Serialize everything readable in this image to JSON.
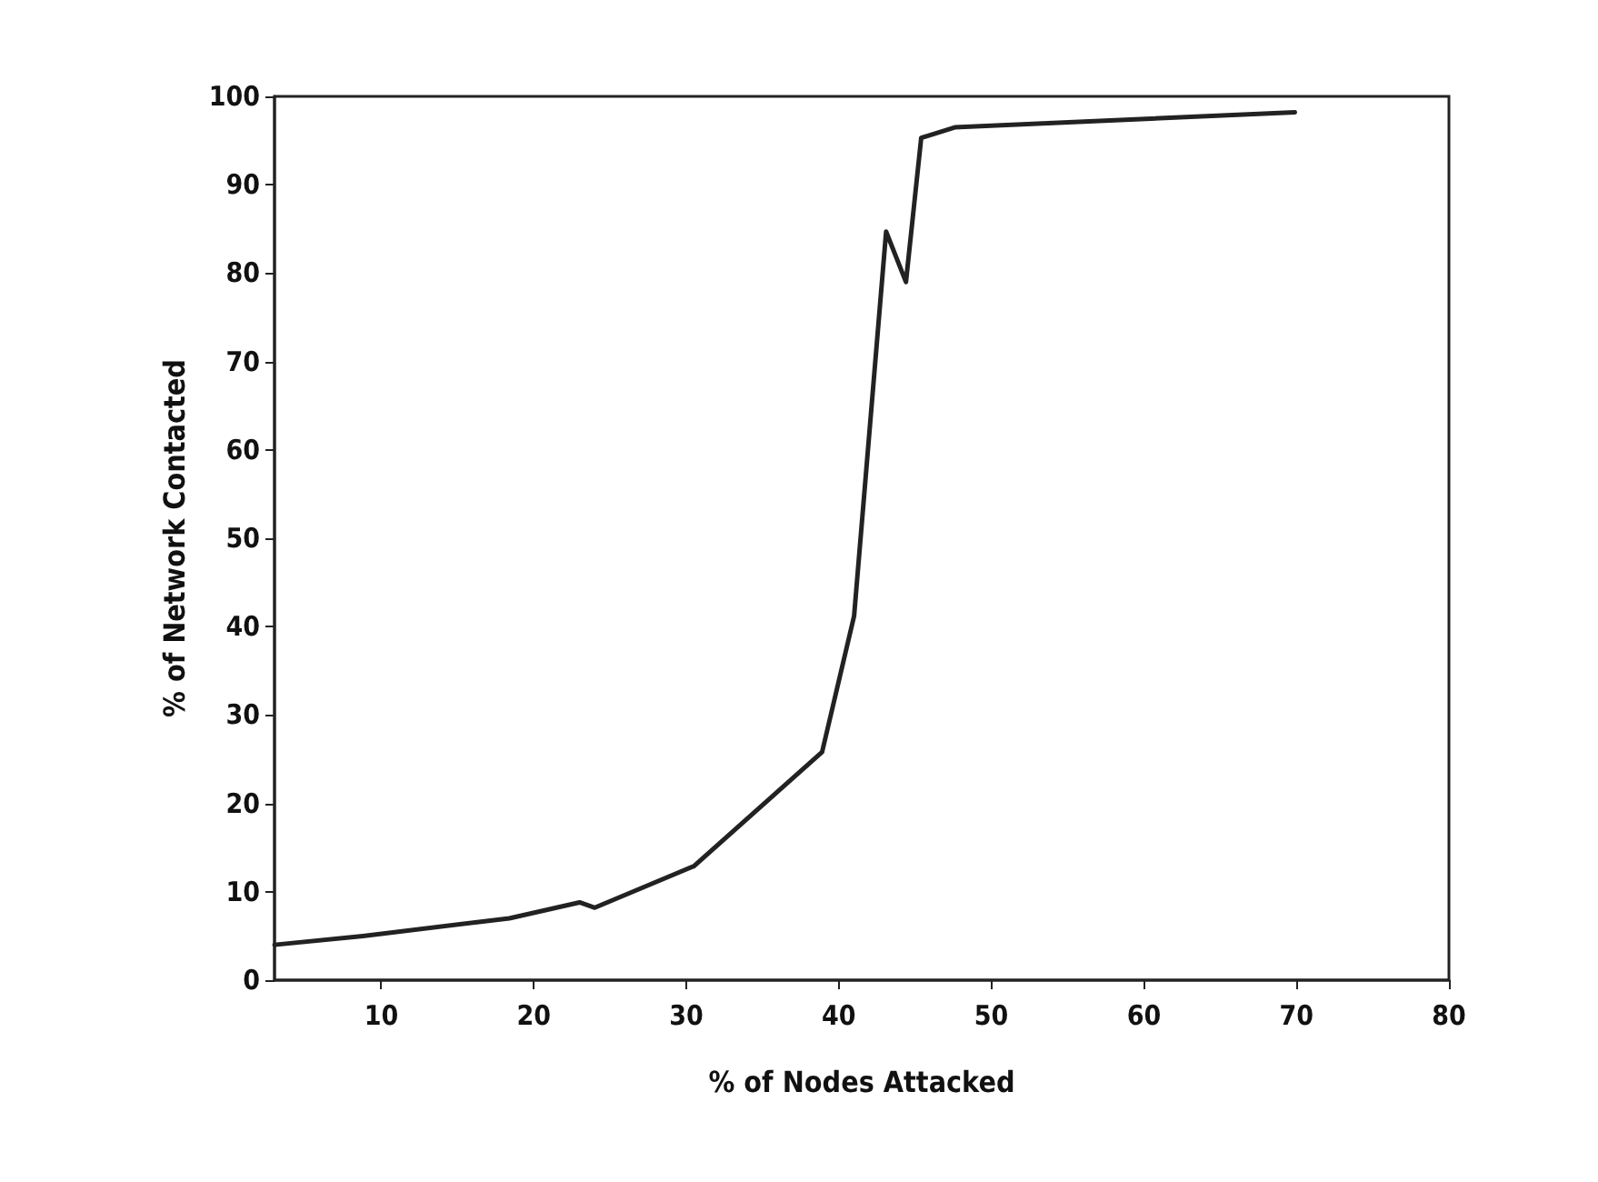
{
  "chart_data": {
    "type": "line",
    "xlabel": "% of Nodes Attacked",
    "ylabel": "% of Network Contacted",
    "x": [
      3,
      8.8,
      18.4,
      23,
      24,
      30.5,
      38.9,
      41,
      43.1,
      44.4,
      45.4,
      47.6,
      69.9
    ],
    "series": [
      {
        "color": "#222222",
        "values": [
          4,
          5,
          7,
          8.8,
          8.2,
          12.9,
          25.8,
          41.2,
          84.7,
          79,
          95.3,
          96.5,
          98.2
        ]
      }
    ],
    "xlim": [
      3,
      80
    ],
    "xticks": [
      10,
      20,
      30,
      40,
      50,
      60,
      70,
      80
    ],
    "ylim": [
      0,
      100
    ],
    "yticks": [
      0,
      10,
      20,
      30,
      40,
      50,
      60,
      70,
      80,
      90,
      100
    ],
    "grid": false,
    "marker": "none",
    "line_style": "solid"
  }
}
